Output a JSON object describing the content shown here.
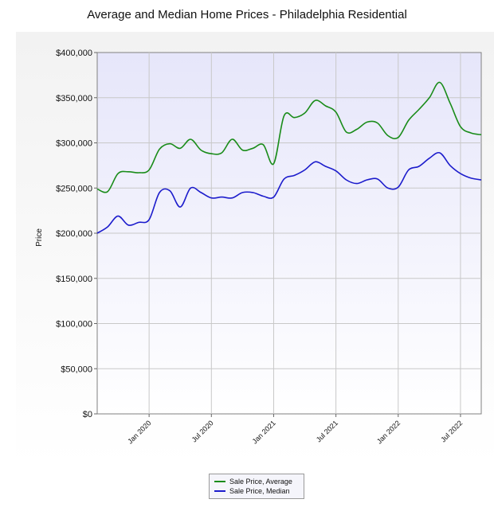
{
  "chart_data": {
    "type": "line",
    "title": "Average and Median Home Prices - Philadelphia Residential",
    "ylabel": "Price",
    "xlabel": "",
    "ylim": [
      0,
      400000
    ],
    "yticks": [
      "$0",
      "$50,000",
      "$100,000",
      "$150,000",
      "$200,000",
      "$250,000",
      "$300,000",
      "$350,000",
      "$400,000"
    ],
    "xticks": [
      "Jan 2020",
      "Jul 2020",
      "Jan 2021",
      "Jul 2021",
      "Jan 2022",
      "Jul 2022"
    ],
    "x": [
      "2019-08",
      "2019-09",
      "2019-10",
      "2019-11",
      "2019-12",
      "2020-01",
      "2020-02",
      "2020-03",
      "2020-04",
      "2020-05",
      "2020-06",
      "2020-07",
      "2020-08",
      "2020-09",
      "2020-10",
      "2020-11",
      "2020-12",
      "2021-01",
      "2021-02",
      "2021-03",
      "2021-04",
      "2021-05",
      "2021-06",
      "2021-07",
      "2021-08",
      "2021-09",
      "2021-10",
      "2021-11",
      "2021-12",
      "2022-01",
      "2022-02",
      "2022-03",
      "2022-04",
      "2022-05",
      "2022-06",
      "2022-07",
      "2022-08",
      "2022-09"
    ],
    "grid": true,
    "legend_position": "bottom",
    "series": [
      {
        "name": "Sale Price, Average",
        "color": "#1a8c1a",
        "values": [
          249000,
          246000,
          266000,
          268000,
          267000,
          270000,
          293000,
          299000,
          294000,
          304000,
          292000,
          288000,
          289000,
          304000,
          292000,
          294000,
          298000,
          277000,
          330000,
          328000,
          333000,
          347000,
          341000,
          334000,
          312000,
          315000,
          323000,
          322000,
          308000,
          306000,
          325000,
          337000,
          350000,
          367000,
          344000,
          318000,
          311000,
          309000
        ]
      },
      {
        "name": "Sale Price, Median",
        "color": "#1c1ccc",
        "values": [
          200000,
          207000,
          219000,
          209000,
          212000,
          215000,
          245000,
          247000,
          229000,
          250000,
          245000,
          239000,
          240000,
          239000,
          245000,
          245000,
          241000,
          240000,
          260000,
          264000,
          270000,
          279000,
          274000,
          269000,
          259000,
          255000,
          259000,
          260000,
          250000,
          251000,
          270000,
          274000,
          283000,
          289000,
          275000,
          266000,
          261000,
          259000
        ]
      }
    ]
  }
}
